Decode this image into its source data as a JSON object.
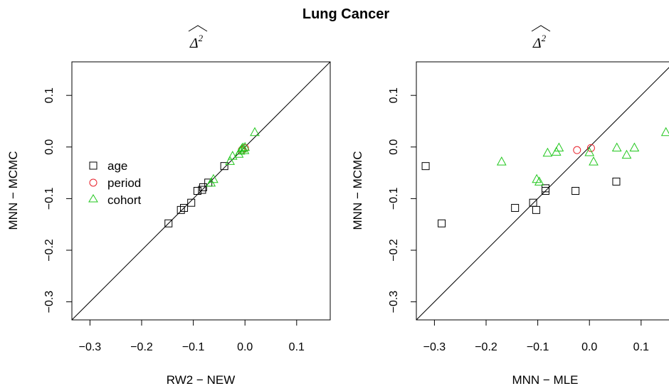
{
  "figure_title": "Lung Cancer",
  "legend_entries": [
    {
      "label": "age",
      "marker": "square",
      "color": "#000000"
    },
    {
      "label": "period",
      "marker": "circle",
      "color": "#e8202a"
    },
    {
      "label": "cohort",
      "marker": "triangle",
      "color": "#22c71e"
    }
  ],
  "chart_data": [
    {
      "type": "scatter",
      "title_symbol": "Δ",
      "title_superscript": "2",
      "title_hat": true,
      "xlabel": "RW2 − NEW",
      "ylabel": "MNN − MCMC",
      "xlim": [
        -0.335,
        0.165
      ],
      "ylim": [
        -0.335,
        0.165
      ],
      "x_ticks": [
        -0.3,
        -0.2,
        -0.1,
        0.0,
        0.1
      ],
      "x_tick_labels": [
        "−0.3",
        "−0.2",
        "−0.1",
        "0.0",
        "0.1"
      ],
      "y_ticks": [
        -0.3,
        -0.2,
        -0.1,
        0.0,
        0.1
      ],
      "y_tick_labels": [
        "−0.3",
        "−0.2",
        "−0.1",
        "0.0",
        "0.1"
      ],
      "reference_line": "y = x",
      "legend": "left",
      "grid": false,
      "series": [
        {
          "name": "age",
          "marker": "square",
          "color": "#000000",
          "points": [
            [
              -0.148,
              -0.148
            ],
            [
              -0.124,
              -0.122
            ],
            [
              -0.118,
              -0.118
            ],
            [
              -0.104,
              -0.108
            ],
            [
              -0.092,
              -0.085
            ],
            [
              -0.083,
              -0.083
            ],
            [
              -0.081,
              -0.078
            ],
            [
              -0.071,
              -0.069
            ],
            [
              -0.04,
              -0.037
            ]
          ]
        },
        {
          "name": "period",
          "marker": "circle",
          "color": "#e8202a",
          "points": [
            [
              -0.006,
              -0.006
            ],
            [
              0.0,
              -0.002
            ]
          ]
        },
        {
          "name": "cohort",
          "marker": "triangle",
          "color": "#22c71e",
          "points": [
            [
              0.019,
              0.029
            ],
            [
              -0.061,
              -0.062
            ],
            [
              -0.066,
              -0.069
            ],
            [
              -0.029,
              -0.027
            ],
            [
              -0.024,
              -0.017
            ],
            [
              -0.012,
              -0.013
            ],
            [
              -0.009,
              -0.007
            ],
            [
              -0.004,
              -0.001
            ],
            [
              0.0,
              0.0
            ],
            [
              -0.001,
              -0.006
            ],
            [
              -0.006,
              -0.003
            ]
          ]
        }
      ]
    },
    {
      "type": "scatter",
      "title_symbol": "Δ",
      "title_superscript": "2",
      "title_hat": true,
      "xlabel": "MNN − MLE",
      "ylabel": "MNN − MCMC",
      "xlim": [
        -0.335,
        0.165
      ],
      "ylim": [
        -0.335,
        0.165
      ],
      "x_ticks": [
        -0.3,
        -0.2,
        -0.1,
        0.0,
        0.1
      ],
      "x_tick_labels": [
        "−0.3",
        "−0.2",
        "−0.1",
        "0.0",
        "0.1"
      ],
      "y_ticks": [
        -0.3,
        -0.2,
        -0.1,
        0.0,
        0.1
      ],
      "y_tick_labels": [
        "−0.3",
        "−0.2",
        "−0.1",
        "0.0",
        "0.1"
      ],
      "reference_line": "y = x",
      "grid": false,
      "series": [
        {
          "name": "age",
          "marker": "square",
          "color": "#000000",
          "points": [
            [
              -0.317,
              -0.037
            ],
            [
              -0.286,
              -0.148
            ],
            [
              -0.144,
              -0.118
            ],
            [
              -0.109,
              -0.108
            ],
            [
              -0.103,
              -0.122
            ],
            [
              -0.085,
              -0.085
            ],
            [
              -0.085,
              -0.08
            ],
            [
              -0.027,
              -0.085
            ],
            [
              0.052,
              -0.067
            ]
          ]
        },
        {
          "name": "period",
          "marker": "circle",
          "color": "#e8202a",
          "points": [
            [
              -0.024,
              -0.006
            ],
            [
              0.003,
              -0.002
            ]
          ]
        },
        {
          "name": "cohort",
          "marker": "triangle",
          "color": "#22c71e",
          "points": [
            [
              -0.17,
              -0.028
            ],
            [
              -0.102,
              -0.062
            ],
            [
              -0.097,
              -0.067
            ],
            [
              -0.081,
              -0.011
            ],
            [
              -0.064,
              -0.009
            ],
            [
              -0.059,
              -0.001
            ],
            [
              0.0,
              -0.01
            ],
            [
              0.008,
              -0.028
            ],
            [
              0.053,
              -0.001
            ],
            [
              0.072,
              -0.015
            ],
            [
              0.087,
              -0.001
            ],
            [
              0.148,
              0.029
            ]
          ]
        }
      ]
    }
  ]
}
